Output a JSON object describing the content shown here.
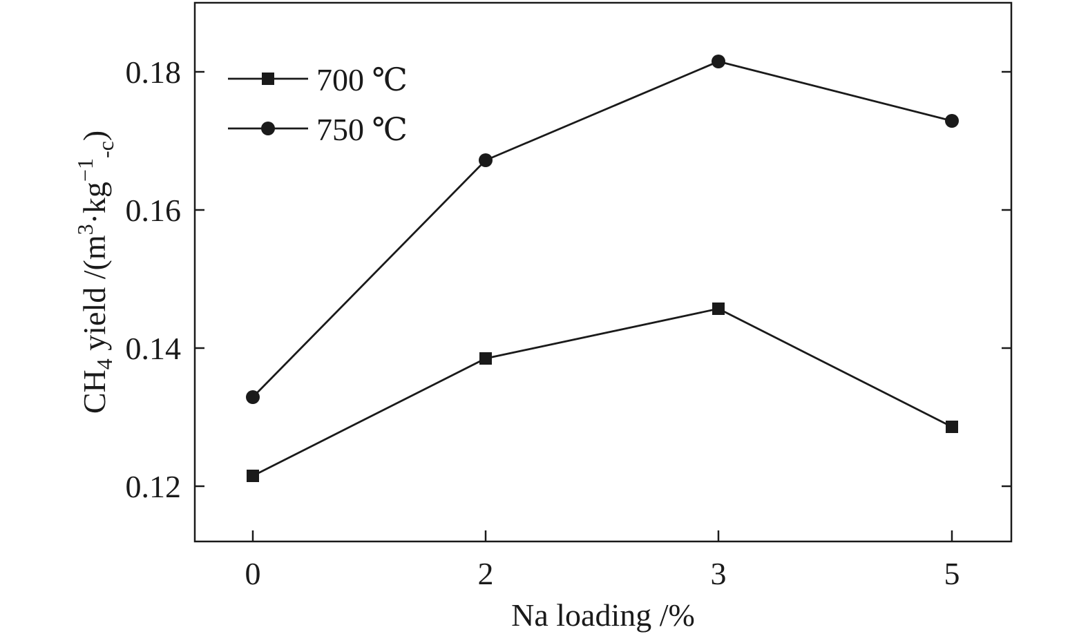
{
  "chart_data": {
    "type": "line",
    "categories": [
      "0",
      "2",
      "3",
      "5"
    ],
    "xlabel": "Na loading /%",
    "ylabel": {
      "prefix": "CH",
      "sub1": "4",
      "mid": " yield /(m",
      "sup1": "3",
      "mid2": "·kg",
      "sup2": "−1",
      "sub2": "-c",
      "suffix": ")"
    },
    "ylim": [
      0.112,
      0.19
    ],
    "yticks": [
      {
        "value": 0.12,
        "label": "0.12"
      },
      {
        "value": 0.14,
        "label": "0.14"
      },
      {
        "value": 0.16,
        "label": "0.16"
      },
      {
        "value": 0.18,
        "label": "0.18"
      }
    ],
    "legend_position": "top-left",
    "grid": false,
    "series": [
      {
        "name": "700 ℃",
        "marker": "square",
        "values": [
          0.1215,
          0.1385,
          0.1457,
          0.1286
        ]
      },
      {
        "name": "750 ℃",
        "marker": "circle",
        "values": [
          0.1329,
          0.1672,
          0.1815,
          0.1729
        ]
      }
    ]
  }
}
